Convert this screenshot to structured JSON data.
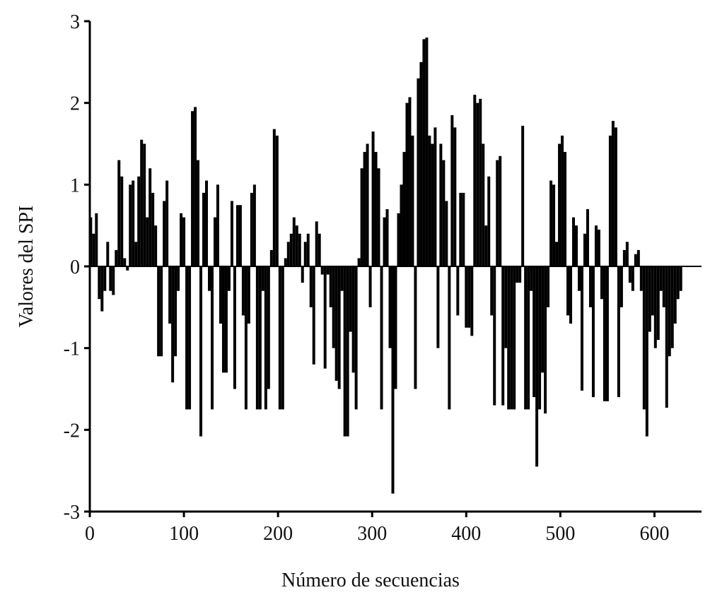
{
  "chart_data": {
    "type": "bar",
    "x_label": "Número de secuencias",
    "y_label": "Valores del SPI",
    "color": "#000000",
    "xlim": [
      0,
      650
    ],
    "xticks": [
      0,
      100,
      200,
      300,
      400,
      500,
      600
    ],
    "ylim": [
      -3,
      3
    ],
    "yticks": [
      -3,
      -2,
      -1,
      0,
      1,
      2,
      3
    ],
    "x": [
      1,
      4,
      7,
      10,
      13,
      16,
      19,
      22,
      25,
      28,
      31,
      34,
      37,
      40,
      43,
      46,
      49,
      52,
      55,
      58,
      61,
      64,
      67,
      70,
      73,
      76,
      79,
      82,
      85,
      88,
      91,
      94,
      97,
      100,
      103,
      106,
      109,
      112,
      115,
      118,
      121,
      124,
      127,
      130,
      133,
      136,
      139,
      142,
      145,
      148,
      151,
      154,
      157,
      160,
      163,
      166,
      169,
      172,
      175,
      178,
      181,
      184,
      187,
      190,
      193,
      196,
      199,
      202,
      205,
      208,
      211,
      214,
      217,
      220,
      223,
      226,
      229,
      232,
      235,
      238,
      241,
      244,
      247,
      250,
      253,
      256,
      259,
      262,
      265,
      268,
      271,
      274,
      277,
      280,
      283,
      286,
      289,
      292,
      295,
      298,
      301,
      304,
      307,
      310,
      313,
      316,
      319,
      322,
      325,
      328,
      331,
      334,
      337,
      340,
      343,
      346,
      349,
      352,
      355,
      358,
      361,
      364,
      367,
      370,
      373,
      376,
      379,
      382,
      385,
      388,
      391,
      394,
      397,
      400,
      403,
      406,
      409,
      412,
      415,
      418,
      421,
      424,
      427,
      430,
      433,
      436,
      439,
      442,
      445,
      448,
      451,
      454,
      457,
      460,
      463,
      466,
      469,
      472,
      475,
      478,
      481,
      484,
      487,
      490,
      493,
      496,
      499,
      502,
      505,
      508,
      511,
      514,
      517,
      520,
      523,
      526,
      529,
      532,
      535,
      538,
      541,
      544,
      547,
      550,
      553,
      556,
      559,
      562,
      565,
      568,
      571,
      574,
      577,
      580,
      583,
      586,
      589,
      592,
      595,
      598,
      601,
      604,
      607,
      610,
      613,
      616,
      619,
      622,
      625,
      628
    ],
    "values": [
      0.6,
      0.4,
      0.65,
      -0.4,
      -0.55,
      -0.3,
      0.3,
      -0.3,
      -0.35,
      0.2,
      1.3,
      1.1,
      0.1,
      -0.05,
      1.0,
      1.05,
      0.3,
      1.1,
      1.55,
      1.5,
      0.6,
      1.2,
      0.9,
      0.5,
      -1.1,
      -1.1,
      0.8,
      1.05,
      -0.7,
      -1.42,
      -1.1,
      -0.3,
      0.65,
      0.6,
      -1.75,
      -1.75,
      1.9,
      1.95,
      1.3,
      -2.08,
      0.9,
      1.05,
      -0.3,
      -1.75,
      0.6,
      1.0,
      -0.7,
      -1.3,
      -1.3,
      -0.3,
      0.8,
      -1.5,
      0.75,
      0.75,
      -0.6,
      -1.75,
      -0.7,
      0.9,
      1.0,
      -1.75,
      -1.75,
      -0.3,
      -1.75,
      -1.5,
      0.2,
      1.68,
      1.6,
      -1.75,
      -1.75,
      0.1,
      0.3,
      0.4,
      0.6,
      0.5,
      0.4,
      -0.2,
      0.3,
      0.4,
      -0.5,
      -1.2,
      0.55,
      0.4,
      -0.1,
      -1.25,
      -0.1,
      -0.5,
      -1.0,
      -1.4,
      -1.5,
      -0.3,
      -2.08,
      -2.08,
      -0.8,
      -1.3,
      -1.75,
      0.1,
      1.2,
      1.4,
      1.5,
      -0.5,
      1.65,
      1.4,
      1.2,
      -1.75,
      0.6,
      0.7,
      -1.0,
      -2.78,
      -1.5,
      0.65,
      1.0,
      1.4,
      2.0,
      2.07,
      1.6,
      -1.5,
      2.3,
      2.5,
      2.78,
      2.8,
      1.6,
      1.5,
      1.7,
      -1.0,
      1.5,
      1.3,
      0.8,
      -1.75,
      1.85,
      1.7,
      -0.6,
      0.9,
      0.9,
      -0.75,
      -0.75,
      -0.85,
      2.1,
      2.0,
      2.05,
      1.5,
      0.5,
      1.1,
      -0.6,
      -1.7,
      1.3,
      1.35,
      -1.7,
      -1.0,
      -1.75,
      -1.75,
      -1.75,
      -0.2,
      -0.2,
      1.72,
      -1.75,
      -1.75,
      -0.3,
      -1.6,
      -2.45,
      -1.75,
      -1.3,
      -1.8,
      -0.5,
      1.05,
      1.0,
      0.3,
      1.5,
      1.6,
      1.4,
      -0.6,
      -0.7,
      0.6,
      0.5,
      -0.3,
      -1.52,
      0.4,
      0.7,
      -0.5,
      -1.6,
      0.5,
      0.45,
      -0.4,
      -1.65,
      -1.65,
      1.6,
      1.78,
      1.7,
      -1.6,
      -0.5,
      0.2,
      0.3,
      -0.2,
      -0.3,
      0.15,
      0.2,
      -0.3,
      -1.75,
      -2.08,
      -0.8,
      -0.6,
      -1.0,
      -0.9,
      -0.3,
      -0.5,
      -1.73,
      -1.1,
      -1.0,
      -0.7,
      -0.4,
      -0.3
    ]
  }
}
